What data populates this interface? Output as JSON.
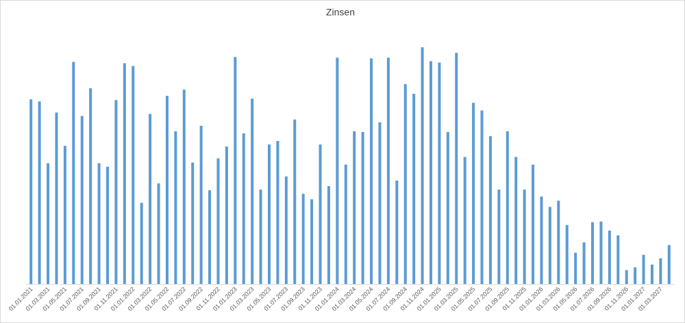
{
  "chart_data": {
    "type": "bar",
    "title": "Zinsen",
    "categories": [
      "01.01.2021",
      null,
      "01.03.2021",
      null,
      "01.05.2021",
      null,
      "01.07.2021",
      null,
      "01.09.2021",
      null,
      "01.11.2021",
      null,
      "01.01.2022",
      null,
      "01.03.2022",
      null,
      "01.05.2022",
      null,
      "01.07.2022",
      null,
      "01.09.2022",
      null,
      "01.11.2022",
      null,
      "01.01.2023",
      null,
      "01.03.2023",
      null,
      "01.05.2023",
      null,
      "01.07.2023",
      null,
      "01.09.2023",
      null,
      "01.11.2023",
      null,
      "01.01.2024",
      null,
      "01.03.2024",
      null,
      "01.05.2024",
      null,
      "01.07.2024",
      null,
      "01.09.2024",
      null,
      "01.11.2024",
      null,
      "01.01.2025",
      null,
      "01.03.2025",
      null,
      "01.05.2025",
      null,
      "01.07.2025",
      null,
      "01.09.2025",
      null,
      "01.11.2025",
      null,
      "01.01.2026",
      null,
      "01.03.2026",
      null,
      "01.05.2026",
      null,
      "01.07.2026",
      null,
      "01.09.2026",
      null,
      "01.11.2026",
      null,
      "01.01.2027",
      null,
      "01.03.2027",
      null
    ],
    "values": [
      266,
      263,
      174,
      247,
      199,
      320,
      242,
      282,
      174,
      169,
      265,
      318,
      314,
      117,
      245,
      145,
      271,
      220,
      280,
      175,
      228,
      135,
      181,
      198,
      327,
      217,
      267,
      136,
      201,
      206,
      155,
      237,
      130,
      122,
      201,
      141,
      326,
      172,
      220,
      219,
      325,
      233,
      326,
      149,
      288,
      274,
      341,
      321,
      319,
      219,
      333,
      183,
      261,
      250,
      213,
      136,
      220,
      183,
      136,
      172,
      126,
      111,
      120,
      85,
      45,
      60,
      89,
      90,
      77,
      70,
      20,
      24,
      42,
      28,
      37,
      56
    ],
    "color": "#5b9bd5",
    "ylim": [
      0,
      350
    ]
  }
}
